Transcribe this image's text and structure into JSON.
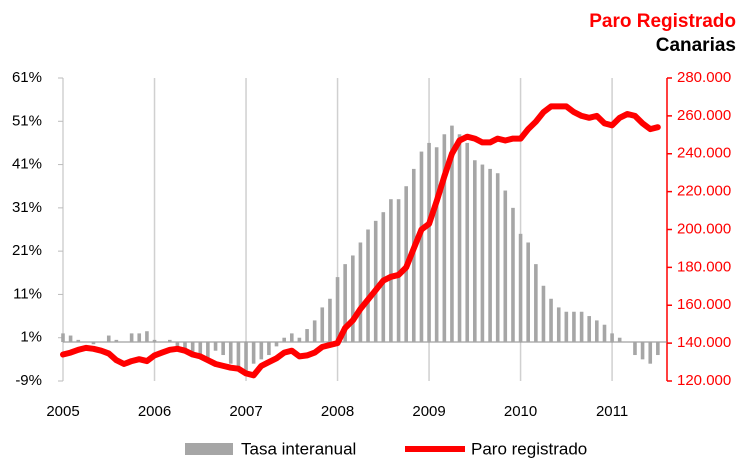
{
  "chart_data": {
    "type": "bar-line",
    "title": "Paro Registrado",
    "subtitle": "Canarias",
    "x": [
      2005,
      2005.083,
      2005.167,
      2005.25,
      2005.333,
      2005.417,
      2005.5,
      2005.583,
      2005.667,
      2005.75,
      2005.833,
      2005.917,
      2006,
      2006.083,
      2006.167,
      2006.25,
      2006.333,
      2006.417,
      2006.5,
      2006.583,
      2006.667,
      2006.75,
      2006.833,
      2006.917,
      2007,
      2007.083,
      2007.167,
      2007.25,
      2007.333,
      2007.417,
      2007.5,
      2007.583,
      2007.667,
      2007.75,
      2007.833,
      2007.917,
      2008,
      2008.083,
      2008.167,
      2008.25,
      2008.333,
      2008.417,
      2008.5,
      2008.583,
      2008.667,
      2008.75,
      2008.833,
      2008.917,
      2009,
      2009.083,
      2009.167,
      2009.25,
      2009.333,
      2009.417,
      2009.5,
      2009.583,
      2009.667,
      2009.75,
      2009.833,
      2009.917,
      2010,
      2010.083,
      2010.167,
      2010.25,
      2010.333,
      2010.417,
      2010.5,
      2010.583,
      2010.667,
      2010.75,
      2010.833,
      2010.917,
      2011,
      2011.083,
      2011.167,
      2011.25,
      2011.333,
      2011.417,
      2011.5
    ],
    "series": [
      {
        "name": "Tasa interanual",
        "kind": "bar",
        "color": "#a6a6a6",
        "values": [
          2,
          1.5,
          0.5,
          0,
          -0.5,
          0,
          1.5,
          0.5,
          0,
          2,
          2,
          2.5,
          0.5,
          0,
          0.5,
          -1,
          -2,
          -3,
          -3,
          -4,
          -2,
          -3,
          -5,
          -6,
          -7,
          -5,
          -4,
          -3,
          -1,
          1,
          2,
          1,
          3,
          5,
          8,
          10,
          15,
          18,
          20,
          23,
          26,
          28,
          30,
          33,
          33,
          36,
          40,
          44,
          46,
          45,
          48,
          50,
          48,
          46,
          42,
          41,
          40,
          39,
          35,
          31,
          25,
          23,
          18,
          13,
          10,
          8,
          7,
          7,
          7,
          6,
          5,
          4,
          2,
          1,
          0,
          -3,
          -4,
          -5,
          -3
        ]
      },
      {
        "name": "Paro registrado",
        "kind": "line",
        "axis": "y2",
        "color": "#ff0000",
        "values": [
          134000,
          135000,
          136500,
          137500,
          137000,
          136000,
          134500,
          131000,
          129000,
          130500,
          131500,
          130500,
          133500,
          135000,
          136500,
          137000,
          136000,
          134000,
          133000,
          131000,
          129000,
          128000,
          127000,
          126500,
          124000,
          123000,
          128000,
          130000,
          132000,
          135000,
          136000,
          133000,
          133500,
          135000,
          138000,
          139000,
          140000,
          148000,
          152000,
          158000,
          163000,
          168000,
          173000,
          175000,
          176000,
          180000,
          190000,
          200000,
          203000,
          215000,
          228000,
          240000,
          247000,
          249000,
          248000,
          246000,
          246000,
          248000,
          247000,
          248000,
          248000,
          253000,
          257000,
          262000,
          265000,
          265000,
          265000,
          262000,
          260000,
          259000,
          260000,
          256000,
          255000,
          259000,
          261000,
          260000,
          256000,
          253000,
          254000
        ]
      }
    ],
    "xlim": [
      2005,
      2011.6
    ],
    "xticks": [
      2005,
      2006,
      2007,
      2008,
      2009,
      2010,
      2011
    ],
    "ylim": [
      -9,
      61
    ],
    "yticks": [
      {
        "value": -9,
        "label": "-9%"
      },
      {
        "value": 1,
        "label": "1%"
      },
      {
        "value": 11,
        "label": "11%"
      },
      {
        "value": 21,
        "label": "21%"
      },
      {
        "value": 31,
        "label": "31%"
      },
      {
        "value": 41,
        "label": "41%"
      },
      {
        "value": 51,
        "label": "51%"
      },
      {
        "value": 61,
        "label": "61%"
      }
    ],
    "y2lim": [
      120000,
      280000
    ],
    "y2ticks": [
      {
        "value": 120000,
        "label": "120.000"
      },
      {
        "value": 140000,
        "label": "140.000"
      },
      {
        "value": 160000,
        "label": "160.000"
      },
      {
        "value": 180000,
        "label": "180.000"
      },
      {
        "value": 200000,
        "label": "200.000"
      },
      {
        "value": 220000,
        "label": "220.000"
      },
      {
        "value": 240000,
        "label": "240.000"
      },
      {
        "value": 260000,
        "label": "260.000"
      },
      {
        "value": 280000,
        "label": "280.000"
      }
    ],
    "x_grid": true,
    "y2_color": "#ff0000",
    "legend": "bottom"
  }
}
